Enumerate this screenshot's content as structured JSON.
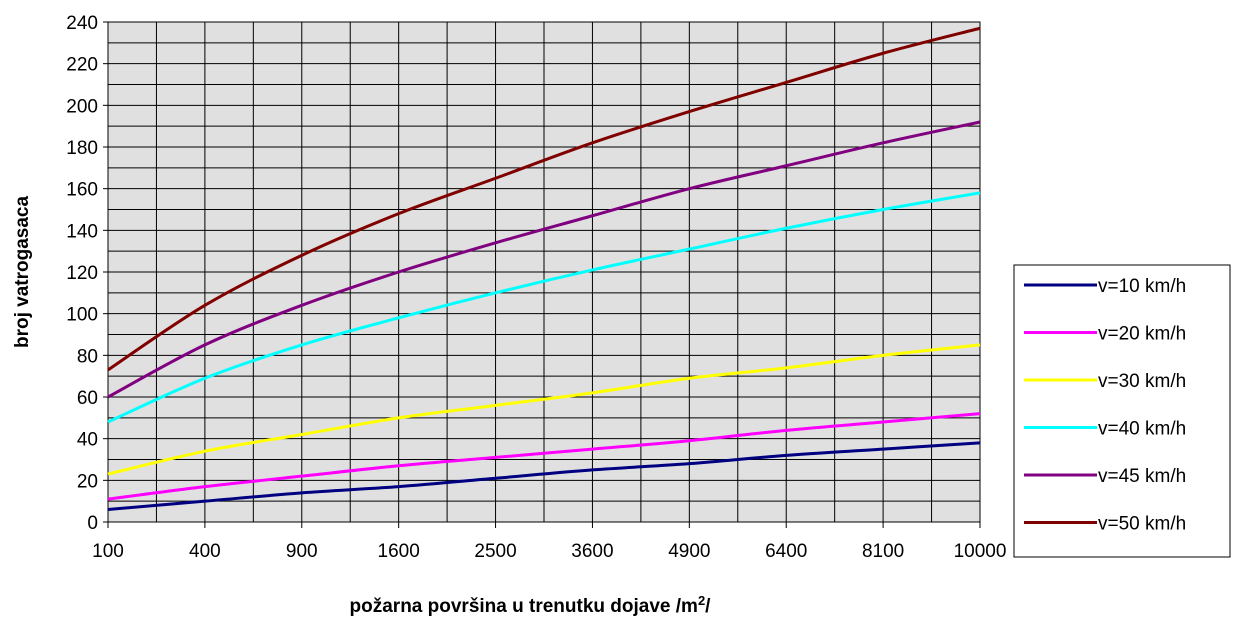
{
  "chart_data": {
    "type": "line",
    "title": "",
    "xlabel": "požarna površina u trenutku dojave /m",
    "xlabel_superscript": "2",
    "xlabel_suffix": "/",
    "ylabel": "broj vatrogasaca",
    "x_scale": "sqrt",
    "xlim": [
      100,
      10000
    ],
    "ylim": [
      0,
      240
    ],
    "x_tick_labels": [
      "100",
      "400",
      "900",
      "1600",
      "2500",
      "3600",
      "4900",
      "6400",
      "8100",
      "10000"
    ],
    "y_tick_labels": [
      "0",
      "20",
      "40",
      "60",
      "80",
      "100",
      "120",
      "140",
      "160",
      "180",
      "200",
      "220",
      "240"
    ],
    "grid": true,
    "plot_background": "#e0e0e0",
    "legend_position": "right",
    "x": [
      100,
      400,
      900,
      1600,
      2500,
      3600,
      4900,
      6400,
      8100,
      10000
    ],
    "series": [
      {
        "name": "v=10 km/h",
        "color": "#000080",
        "values": [
          6,
          10,
          14,
          17,
          21,
          25,
          28,
          32,
          35,
          38
        ]
      },
      {
        "name": "v=20 km/h",
        "color": "#ff00ff",
        "values": [
          11,
          17,
          22,
          27,
          31,
          35,
          39,
          44,
          48,
          52
        ]
      },
      {
        "name": "v=30 km/h",
        "color": "#ffff00",
        "values": [
          23,
          34,
          42,
          50,
          56,
          62,
          69,
          74,
          80,
          85
        ]
      },
      {
        "name": "v=40 km/h",
        "color": "#00ffff",
        "values": [
          48,
          69,
          85,
          98,
          110,
          121,
          131,
          141,
          150,
          158
        ]
      },
      {
        "name": "v=45 km/h",
        "color": "#800080",
        "values": [
          60,
          85,
          104,
          120,
          134,
          147,
          160,
          171,
          182,
          192
        ]
      },
      {
        "name": "v=50 km/h",
        "color": "#800000",
        "values": [
          73,
          104,
          128,
          148,
          165,
          182,
          197,
          211,
          225,
          237
        ]
      }
    ]
  }
}
